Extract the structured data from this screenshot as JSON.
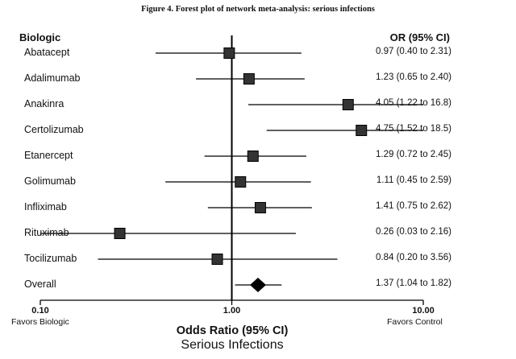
{
  "caption": "Figure 4.   Forest plot of network meta-analysis: serious infections",
  "chart_data": {
    "type": "forest",
    "column_headers": {
      "left": "Biologic",
      "right": "OR (95% CI)"
    },
    "x_scale": "log",
    "xlim": [
      0.1,
      10
    ],
    "reference_line": 1.0,
    "tick_labels": [
      "0.10",
      "1.00",
      "10.00"
    ],
    "tick_values": [
      0.1,
      1,
      10
    ],
    "favors_left": "Favors Biologic",
    "favors_right": "Favors Control",
    "xlabel": "Odds Ratio (95% CI)",
    "subtitle": "Serious Infections",
    "rows": [
      {
        "label": "Abatacept",
        "or": 0.97,
        "lo": 0.4,
        "hi": 2.31,
        "text": "0.97 (0.40 to 2.31)"
      },
      {
        "label": "Adalimumab",
        "or": 1.23,
        "lo": 0.65,
        "hi": 2.4,
        "text": "1.23 (0.65 to 2.40)"
      },
      {
        "label": "Anakinra",
        "or": 4.05,
        "lo": 1.22,
        "hi": 16.8,
        "text": "4.05 (1.22 to 16.8)"
      },
      {
        "label": "Certolizumab",
        "or": 4.75,
        "lo": 1.52,
        "hi": 18.5,
        "text": "4.75 (1.52 to 18.5)"
      },
      {
        "label": "Etanercept",
        "or": 1.29,
        "lo": 0.72,
        "hi": 2.45,
        "text": "1.29 (0.72 to 2.45)"
      },
      {
        "label": "Golimumab",
        "or": 1.11,
        "lo": 0.45,
        "hi": 2.59,
        "text": "1.11 (0.45 to 2.59)"
      },
      {
        "label": "Infliximab",
        "or": 1.41,
        "lo": 0.75,
        "hi": 2.62,
        "text": "1.41 (0.75 to 2.62)"
      },
      {
        "label": "Rituximab",
        "or": 0.26,
        "lo": 0.03,
        "hi": 2.16,
        "text": "0.26 (0.03 to 2.16)"
      },
      {
        "label": "Tocilizumab",
        "or": 0.84,
        "lo": 0.2,
        "hi": 3.56,
        "text": "0.84 (0.20 to 3.56)"
      }
    ],
    "overall": {
      "label": "Overall",
      "or": 1.37,
      "lo": 1.04,
      "hi": 1.82,
      "text": "1.37 (1.04 to 1.82)"
    }
  }
}
